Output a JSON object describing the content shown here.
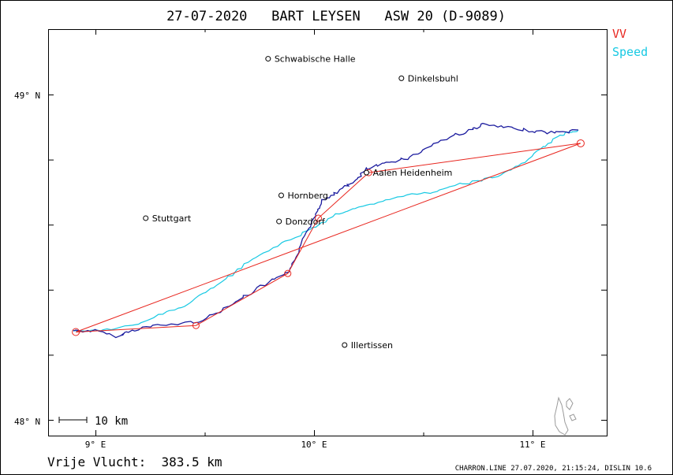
{
  "header": {
    "title": "27-07-2020   BART LEYSEN   ASW 20 (D-9089)"
  },
  "legend": [
    {
      "label": "VV",
      "color": "#e8251e"
    },
    {
      "label": "Speed",
      "color": "#17c9e3"
    }
  ],
  "axes": {
    "lat_labels": [
      "49° N",
      "48° N"
    ],
    "lon_labels": [
      "9° E",
      "10° E",
      "11° E"
    ]
  },
  "scale_bar": {
    "label": "10 km"
  },
  "towns": [
    {
      "name": "Schwabische Halle",
      "lon": 9.79,
      "lat": 49.11
    },
    {
      "name": "Dinkelsbuhl",
      "lon": 10.4,
      "lat": 49.05
    },
    {
      "name": "Aalen Heidenheim",
      "lon": 10.24,
      "lat": 48.76
    },
    {
      "name": "Hornberg",
      "lon": 9.85,
      "lat": 48.69
    },
    {
      "name": "Stuttgart",
      "lon": 9.23,
      "lat": 48.62
    },
    {
      "name": "Donzdorf",
      "lon": 9.84,
      "lat": 48.61
    },
    {
      "name": "Illertissen",
      "lon": 10.14,
      "lat": 48.23
    }
  ],
  "turnpoints": [
    {
      "lon": 8.91,
      "lat": 48.27
    },
    {
      "lon": 9.46,
      "lat": 48.29
    },
    {
      "lon": 9.88,
      "lat": 48.45
    },
    {
      "lon": 10.02,
      "lat": 48.62
    },
    {
      "lon": 10.25,
      "lat": 48.76
    },
    {
      "lon": 11.22,
      "lat": 48.85
    }
  ],
  "colors": {
    "task_line": "#e8251e",
    "vv_track": "#1a1a9e",
    "speed_track": "#17c9e3",
    "frame": "#000000"
  },
  "footer": {
    "distance_label": "Vrije Vlucht:  383.5 km",
    "credits": "CHARRON.LINE 27.07.2020, 21:15:24, DISLIN 10.6"
  }
}
